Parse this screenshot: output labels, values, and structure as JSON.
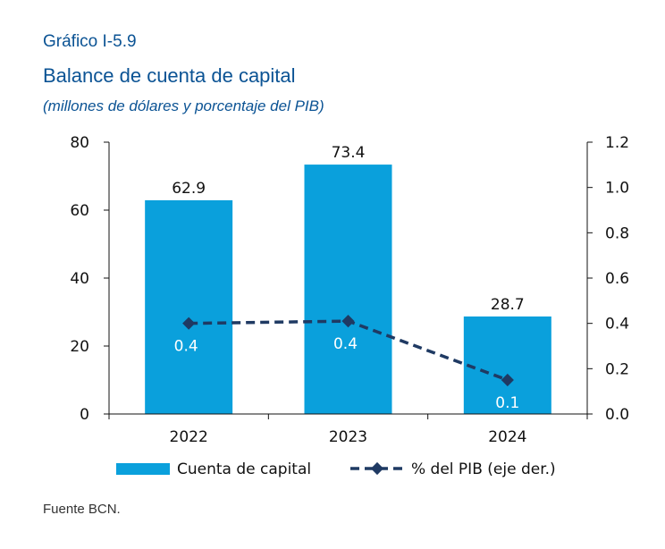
{
  "header": {
    "label": "Gráfico I-5.9",
    "title": "Balance de cuenta de capital",
    "subtitle": "(millones de dólares y porcentaje del PIB)"
  },
  "source": "Fuente BCN.",
  "colors": {
    "bar": "#0AA0DC",
    "line": "#1F3A63",
    "header": "#0B5394"
  },
  "chart_data": {
    "type": "bar",
    "categories": [
      "2022",
      "2023",
      "2024"
    ],
    "series": [
      {
        "name": "Cuenta de capital",
        "type": "bar",
        "axis": "left",
        "values": [
          62.9,
          73.4,
          28.7
        ],
        "labels": [
          "62.9",
          "73.4",
          "28.7"
        ]
      },
      {
        "name": "% del PIB (eje der.)",
        "type": "line",
        "axis": "right",
        "style": "dashed",
        "values": [
          0.4,
          0.41,
          0.15
        ],
        "labels": [
          "0.4",
          "0.4",
          "0.1"
        ]
      }
    ],
    "ylim": [
      0,
      80
    ],
    "yticks": [
      "0",
      "20",
      "40",
      "60",
      "80"
    ],
    "y2lim": [
      0,
      1.2
    ],
    "y2ticks": [
      "0.0",
      "0.2",
      "0.4",
      "0.6",
      "0.8",
      "1.0",
      "1.2"
    ],
    "grid": false,
    "legend": "bottom"
  }
}
